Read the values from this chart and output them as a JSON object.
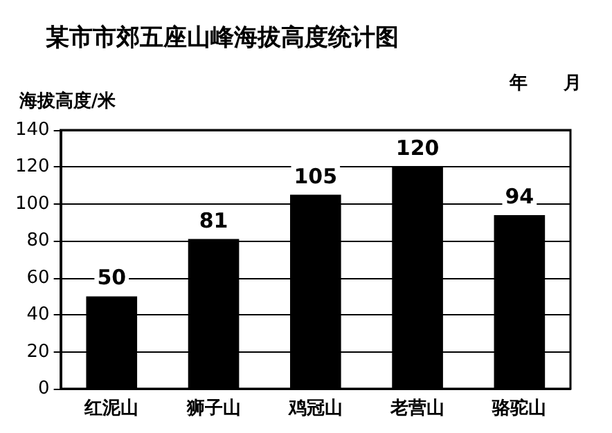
{
  "chart_data": {
    "type": "bar",
    "title": "某市市郊五座山峰海拔高度统计图",
    "ylabel": "海拔高度/米",
    "annotations": [
      "年　　月"
    ],
    "categories": [
      "红泥山",
      "狮子山",
      "鸡冠山",
      "老营山",
      "骆驼山"
    ],
    "values": [
      50,
      81,
      105,
      120,
      94
    ],
    "color": "#000000",
    "ylim": [
      0,
      140
    ],
    "yticks": [
      0,
      20,
      40,
      60,
      80,
      100,
      120,
      140
    ],
    "grid": "y",
    "data_labels": true
  }
}
